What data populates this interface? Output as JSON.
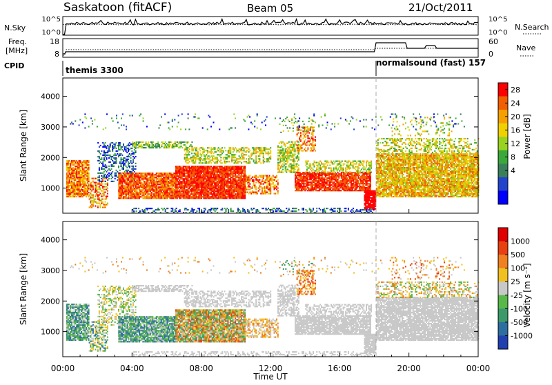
{
  "header": {
    "title": "Saskatoon (fitACF)",
    "beam": "Beam 05",
    "date": "21/Oct/2011"
  },
  "panels": {
    "noise": {
      "left_label": "N.Sky",
      "right_label": "N.Search",
      "left_ticks": [
        "10^5",
        "10^0"
      ],
      "right_ticks": [
        "10^5",
        "10^0"
      ]
    },
    "freq": {
      "left_label_1": "Freq.",
      "left_label_2": "[MHz]",
      "left_ticks": [
        "18",
        "8"
      ],
      "right_label": "Nave",
      "right_ticks": [
        "60",
        "0"
      ]
    },
    "cpid": {
      "label": "CPID",
      "program_1": "themis 3300",
      "program_2": "normalsound (fast) 157"
    }
  },
  "chart_data": [
    {
      "type": "heatmap",
      "name": "power",
      "ylabel": "Slant Range [km]",
      "xlabel": "Time UT",
      "ylim": [
        180,
        4600
      ],
      "xlim": [
        0,
        24
      ],
      "yticks": [
        "1000",
        "2000",
        "3000",
        "4000"
      ],
      "xticks": [
        "00:00",
        "04:00",
        "08:00",
        "12:00",
        "16:00",
        "20:00",
        "00:00"
      ],
      "colorbar_label": "Power [dB]",
      "colorbar_ticks": [
        "28",
        "24",
        "20",
        "16",
        "12",
        "8",
        "4"
      ],
      "colors": [
        "#0000ff",
        "#2244cc",
        "#3a7f5a",
        "#3aa83a",
        "#9ad31f",
        "#f0d000",
        "#f5a000",
        "#f06000",
        "#ff0000"
      ],
      "mode_change_time": 18.1
    },
    {
      "type": "heatmap",
      "name": "velocity",
      "ylabel": "Slant Range [km]",
      "xlabel": "Time UT",
      "ylim": [
        180,
        4600
      ],
      "xlim": [
        0,
        24
      ],
      "yticks": [
        "1000",
        "2000",
        "3000",
        "4000"
      ],
      "xticks": [
        "00:00",
        "04:00",
        "08:00",
        "12:00",
        "16:00",
        "20:00",
        "00:00"
      ],
      "colorbar_label": "Velocity [m s⁻¹]",
      "colorbar_ticks": [
        "1000",
        "500",
        "100",
        "25",
        "-25",
        "-100",
        "-500",
        "-1000"
      ],
      "colors": [
        "#2040b0",
        "#2c6ea0",
        "#3c9a6a",
        "#58b848",
        "#c8c8c8",
        "#f0c020",
        "#f08020",
        "#e84010",
        "#e00000"
      ],
      "mode_change_time": 18.1
    }
  ]
}
